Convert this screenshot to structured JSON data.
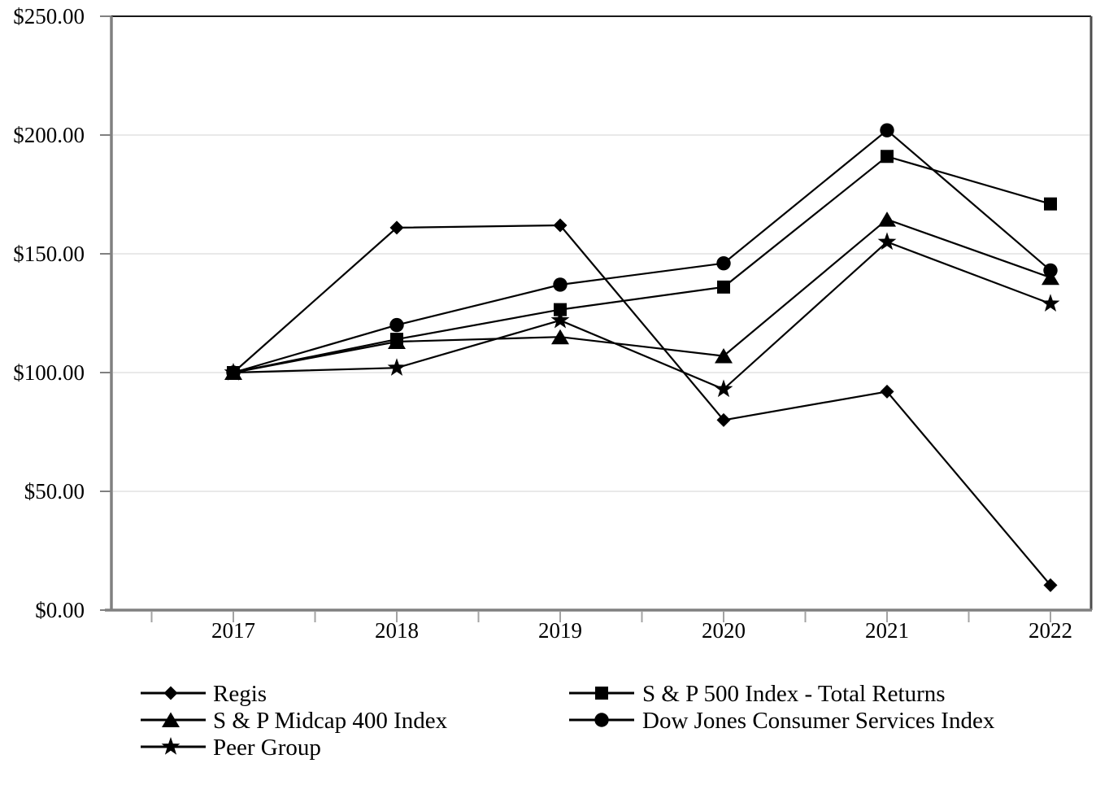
{
  "chart_data": {
    "type": "line",
    "title": "",
    "xlabel": "",
    "ylabel": "",
    "categories": [
      "2017",
      "2018",
      "2019",
      "2020",
      "2021",
      "2022"
    ],
    "series": [
      {
        "name": "Regis",
        "marker": "diamond",
        "values": [
          100,
          161,
          162,
          80,
          92,
          10.5
        ]
      },
      {
        "name": "S & P 500 Index - Total Returns",
        "marker": "square",
        "values": [
          100,
          114,
          126.5,
          136,
          191,
          171
        ]
      },
      {
        "name": "S & P Midcap 400 Index",
        "marker": "triangle",
        "values": [
          100,
          113,
          115,
          107,
          164.5,
          140
        ]
      },
      {
        "name": "Dow Jones Consumer Services Index",
        "marker": "circle",
        "values": [
          100,
          120,
          137,
          146,
          202,
          143
        ]
      },
      {
        "name": "Peer Group",
        "marker": "star",
        "values": [
          100,
          102,
          122,
          93,
          155,
          129
        ]
      }
    ],
    "ylim": [
      0,
      250
    ],
    "ytick_step": 50,
    "ytick_labels": [
      "$0.00",
      "$50.00",
      "$100.00",
      "$150.00",
      "$200.00",
      "$250.00"
    ],
    "grid": true,
    "line_color": "#000000",
    "grid_color": "#e9e9e9",
    "axis_color": "#808080",
    "tick_color": "#a3a3a3",
    "legend_position": "bottom",
    "legend_columns": [
      [
        0,
        2,
        4
      ],
      [
        1,
        3
      ]
    ],
    "draw_order": [
      2,
      4,
      1,
      3,
      0
    ]
  }
}
